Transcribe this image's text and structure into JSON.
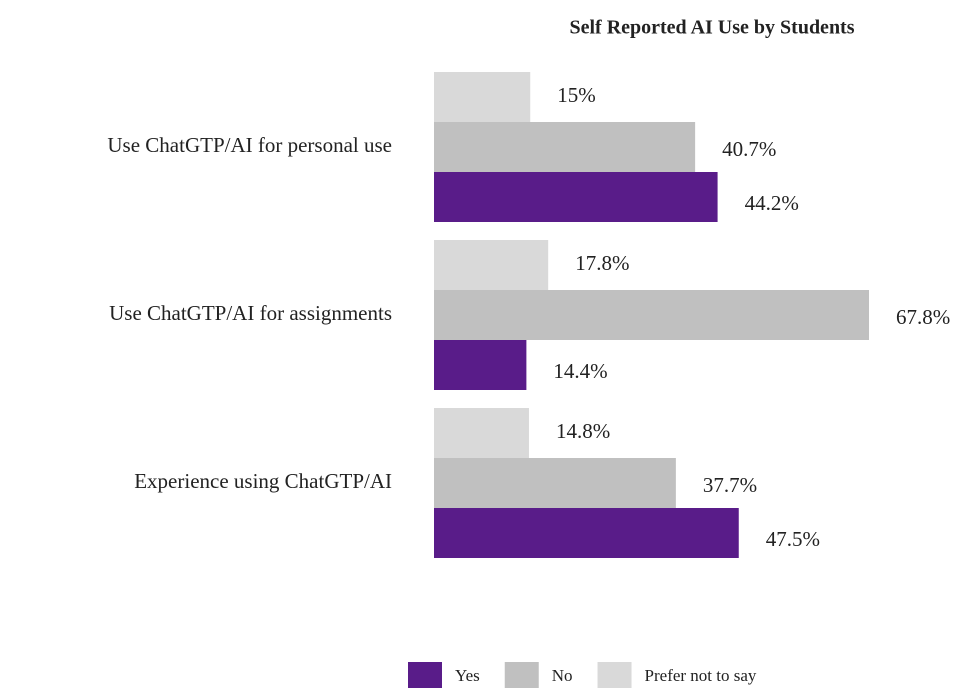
{
  "chart_data": {
    "type": "barh",
    "title": "Self Reported AI Use by Students",
    "categories": [
      "Use ChatGTP/AI for personal use",
      "Use ChatGTP/AI for assignments",
      "Experience using ChatGTP/AI"
    ],
    "series": [
      {
        "name": "Yes",
        "color": "#591c89",
        "values": [
          44.2,
          14.4,
          47.5
        ],
        "value_labels": [
          "44.2%",
          "14.4%",
          "47.5%"
        ]
      },
      {
        "name": "No",
        "color": "#c0c0c0",
        "values": [
          40.7,
          67.8,
          37.7
        ],
        "value_labels": [
          "40.7%",
          "67.8%",
          "37.7%"
        ]
      },
      {
        "name": "Prefer not to say",
        "color": "#d9d9d9",
        "values": [
          15,
          17.8,
          14.8
        ],
        "value_labels": [
          "15%",
          "17.8%",
          "14.8%"
        ]
      }
    ],
    "legend": "bottom"
  }
}
